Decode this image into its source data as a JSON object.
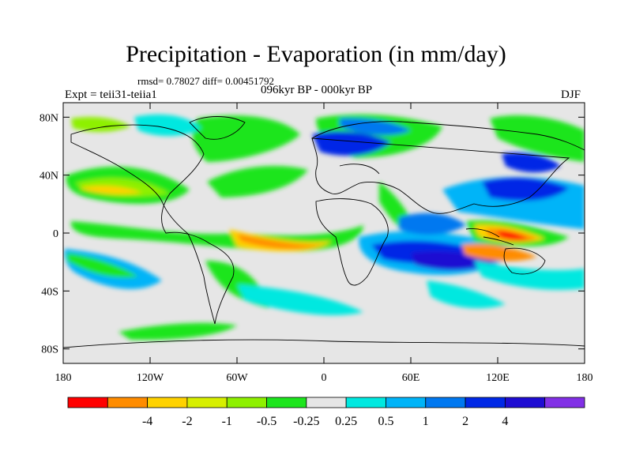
{
  "title": "Precipitation - Evaporation (in mm/day)",
  "stats": "rmsd= 0.78027 diff= 0.00451792",
  "experiment": "Expt = teii31-teiia1",
  "period": "096kyr BP - 000kyr BP",
  "season": "DJF",
  "map": {
    "lat_ticks": [
      {
        "value": 80,
        "label": "80N"
      },
      {
        "value": 40,
        "label": "40N"
      },
      {
        "value": 0,
        "label": "0"
      },
      {
        "value": -40,
        "label": "40S"
      },
      {
        "value": -80,
        "label": "80S"
      }
    ],
    "lon_ticks": [
      {
        "value": -180,
        "label": "180"
      },
      {
        "value": -120,
        "label": "120W"
      },
      {
        "value": -60,
        "label": "60W"
      },
      {
        "value": 0,
        "label": "0"
      },
      {
        "value": 60,
        "label": "60E"
      },
      {
        "value": 120,
        "label": "120E"
      },
      {
        "value": 180,
        "label": "180"
      }
    ],
    "background_color": "#e6e6e6"
  },
  "colorbar": {
    "colors": [
      "#ff0000",
      "#ff8c00",
      "#ffd200",
      "#d7ef00",
      "#8ef000",
      "#1de51d",
      "#e6e6e6",
      "#00e8e0",
      "#00b4f8",
      "#0078f0",
      "#0028e6",
      "#1e0cd2",
      "#8230e6"
    ],
    "labels": [
      "-4",
      "-2",
      "-1",
      "-0.5",
      "-0.25",
      "0.25",
      "0.5",
      "1",
      "2",
      "4"
    ]
  }
}
